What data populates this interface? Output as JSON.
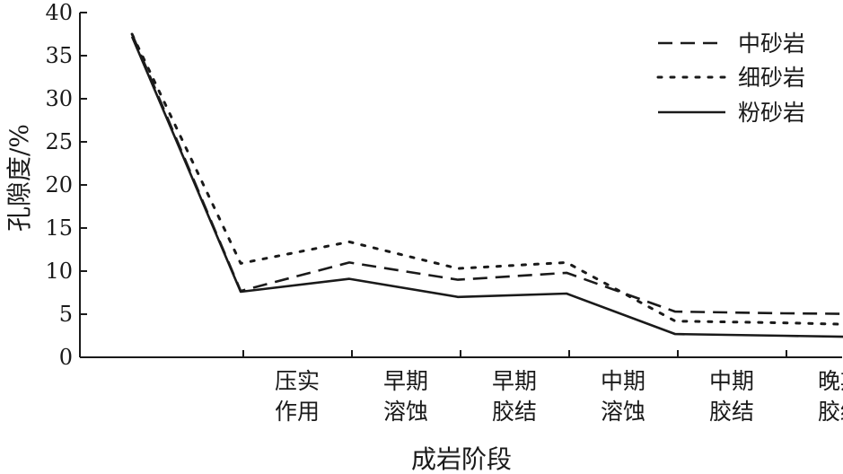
{
  "chart_data": {
    "type": "line",
    "xlabel": "成岩阶段",
    "ylabel": "孔隙度/%",
    "ylim": [
      0,
      40
    ],
    "yticks": [
      0,
      5,
      10,
      15,
      20,
      25,
      30,
      35,
      40
    ],
    "grid": false,
    "legend_position": "top-right",
    "categories": [
      {
        "line1": "",
        "line2": ""
      },
      {
        "line1": "压实",
        "line2": "作用"
      },
      {
        "line1": "早期",
        "line2": "溶蚀"
      },
      {
        "line1": "早期",
        "line2": "胶结"
      },
      {
        "line1": "中期",
        "line2": "溶蚀"
      },
      {
        "line1": "中期",
        "line2": "胶结"
      },
      {
        "line1": "晚期",
        "line2": "胶结"
      }
    ],
    "x": [
      0.48,
      1.48,
      2.48,
      3.48,
      4.48,
      5.48,
      6.48,
      7.48
    ],
    "series": [
      {
        "name": "中砂岩",
        "style": "dashed",
        "color": "#1a1a1a",
        "values": [
          37.5,
          7.7,
          11.0,
          9.0,
          9.8,
          5.3,
          5.1,
          5.0
        ]
      },
      {
        "name": "细砂岩",
        "style": "dotted",
        "color": "#1a1a1a",
        "values": [
          37.5,
          10.9,
          13.4,
          10.3,
          11.0,
          4.2,
          4.0,
          3.7
        ]
      },
      {
        "name": "粉砂岩",
        "style": "solid",
        "color": "#1a1a1a",
        "values": [
          37.2,
          7.6,
          9.1,
          7.0,
          7.4,
          2.7,
          2.5,
          2.3
        ]
      }
    ]
  }
}
